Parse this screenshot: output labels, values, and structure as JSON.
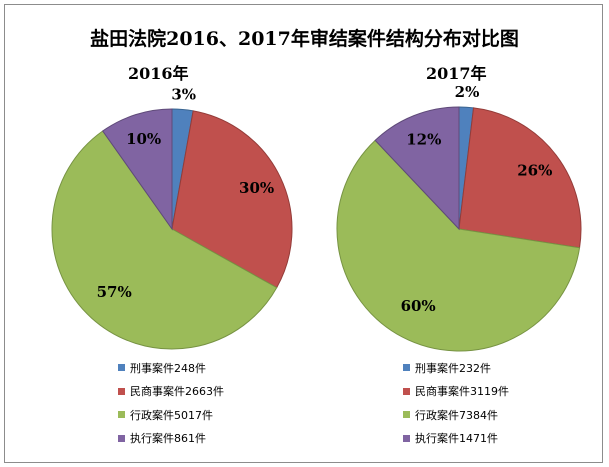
{
  "title": "盐田法院2016、2017年审结案件结构分布对比图",
  "chart_data": [
    {
      "type": "pie",
      "title": "2016年",
      "slices": [
        {
          "label": "刑事案件248件",
          "value": 248,
          "percent_label": "3%",
          "color": "#4f81bd"
        },
        {
          "label": "民商事案件2663件",
          "value": 2663,
          "percent_label": "30%",
          "color": "#c0504d"
        },
        {
          "label": "行政案件5017件",
          "value": 5017,
          "percent_label": "57%",
          "color": "#9bbb59"
        },
        {
          "label": "执行案件861件",
          "value": 861,
          "percent_label": "10%",
          "color": "#8064a2"
        }
      ],
      "legend_position": "bottom"
    },
    {
      "type": "pie",
      "title": "2017年",
      "slices": [
        {
          "label": "刑事案件232件",
          "value": 232,
          "percent_label": "2%",
          "color": "#4f81bd"
        },
        {
          "label": "民商事案件3119件",
          "value": 3119,
          "percent_label": "26%",
          "color": "#c0504d"
        },
        {
          "label": "行政案件7384件",
          "value": 7384,
          "percent_label": "60%",
          "color": "#9bbb59"
        },
        {
          "label": "执行案件1471件",
          "value": 1471,
          "percent_label": "12%",
          "color": "#8064a2"
        }
      ],
      "legend_position": "bottom"
    }
  ]
}
